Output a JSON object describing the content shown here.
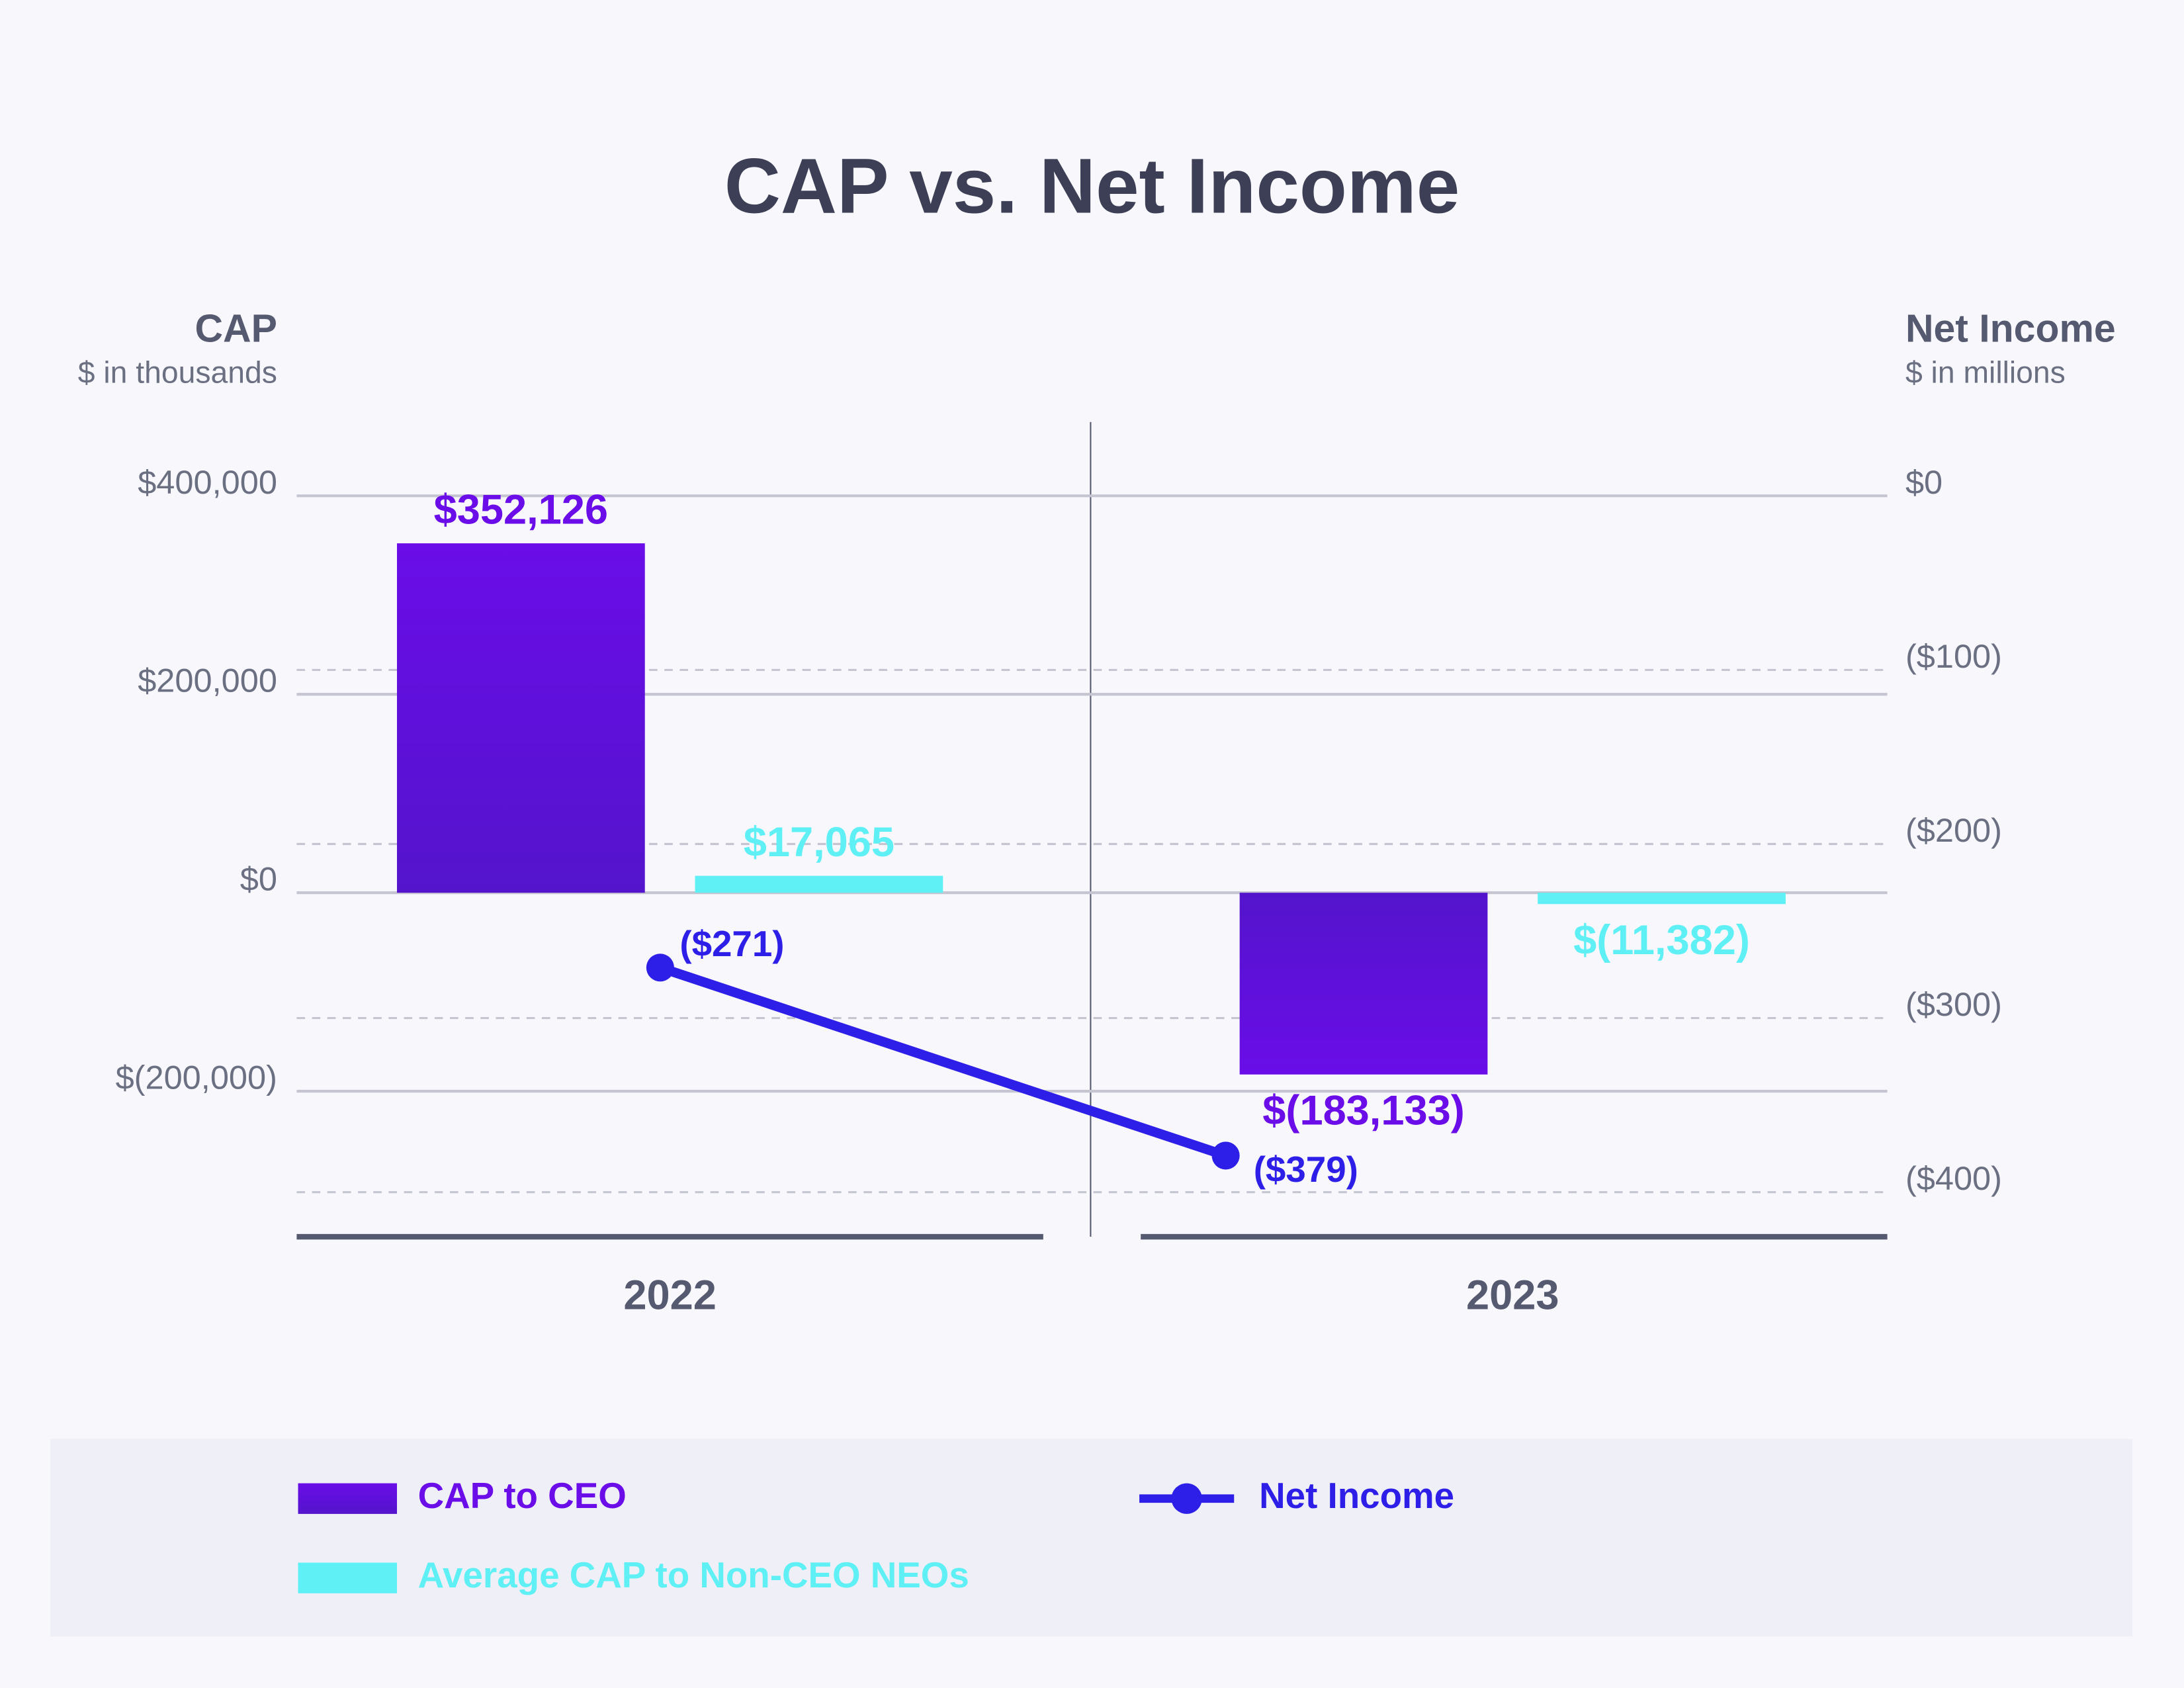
{
  "chart_data": {
    "type": "bar",
    "title": "CAP vs. Net Income",
    "y_axis_title": "CAP",
    "y_axis_subtitle": "$ in thousands",
    "y2_axis_title": "Net Income",
    "y2_axis_subtitle": "$ in millions",
    "categories": [
      "2022",
      "2023"
    ],
    "ylim": [
      -346667,
      474386
    ],
    "yticks": [
      {
        "value": 400000,
        "label": "$400,000"
      },
      {
        "value": 200000,
        "label": "$200,000"
      },
      {
        "value": 0,
        "label": "$0"
      },
      {
        "value": -200000,
        "label": "$(200,000)"
      }
    ],
    "y2lim": [
      -425.6,
      42.4
    ],
    "y2ticks": [
      {
        "value": 0,
        "label": "$0"
      },
      {
        "value": -100,
        "label": "($100)"
      },
      {
        "value": -200,
        "label": "($200)"
      },
      {
        "value": -300,
        "label": "($300)"
      },
      {
        "value": -400,
        "label": "($400)"
      }
    ],
    "grid": true,
    "series": [
      {
        "name": "CAP to CEO",
        "type": "bar",
        "color": "#6a0de8",
        "values": [
          352126,
          -183133
        ],
        "value_labels": [
          "$352,126",
          "$(183,133)"
        ]
      },
      {
        "name": "Average CAP to Non-CEO NEOs",
        "type": "bar",
        "color": "#5ef0f5",
        "values": [
          17065,
          -11382
        ],
        "value_labels": [
          "$17,065",
          "$(11,382)"
        ]
      },
      {
        "name": "Net Income",
        "type": "line",
        "axis": "y2",
        "color": "#2e1fe8",
        "values": [
          -271,
          -379
        ],
        "value_labels": [
          "($271)",
          "($379)"
        ]
      }
    ]
  }
}
